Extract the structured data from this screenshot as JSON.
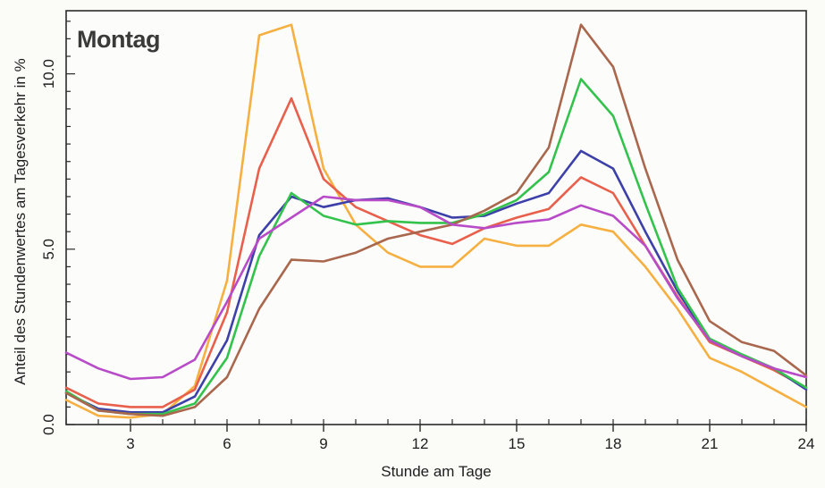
{
  "chart_data": {
    "type": "line",
    "title": "Montag",
    "xlabel": "Stunde am Tage",
    "ylabel": "Anteil des Stundenwertes am Tagesverkehr in %",
    "xlim": [
      1,
      24
    ],
    "ylim": [
      0,
      11.8
    ],
    "xticks": [
      3,
      6,
      9,
      12,
      15,
      18,
      21,
      24
    ],
    "xtick_labels": [
      "3",
      "6",
      "9",
      "12",
      "15",
      "18",
      "21",
      "24"
    ],
    "yticks": [
      0,
      5,
      10
    ],
    "ytick_labels": [
      "0.0",
      "5.0",
      "10.0"
    ],
    "grid": false,
    "legend": "none",
    "x": [
      1,
      2,
      3,
      4,
      5,
      6,
      7,
      8,
      9,
      10,
      11,
      12,
      13,
      14,
      15,
      16,
      17,
      18,
      19,
      20,
      21,
      22,
      23,
      24
    ],
    "series": [
      {
        "color": "#f5b041",
        "values": [
          0.7,
          0.25,
          0.2,
          0.3,
          1.1,
          4.1,
          11.1,
          11.4,
          7.3,
          5.7,
          4.9,
          4.5,
          4.5,
          5.3,
          5.1,
          5.1,
          5.7,
          5.5,
          4.5,
          3.3,
          1.9,
          1.5,
          1.0,
          0.5
        ]
      },
      {
        "color": "#e8604c",
        "values": [
          1.05,
          0.6,
          0.5,
          0.5,
          1.0,
          3.2,
          7.3,
          9.3,
          7.0,
          6.2,
          5.8,
          5.4,
          5.15,
          5.6,
          5.9,
          6.15,
          7.05,
          6.6,
          5.1,
          3.65,
          2.35,
          1.95,
          1.55,
          1.05
        ]
      },
      {
        "color": "#3c40a8",
        "values": [
          0.9,
          0.45,
          0.35,
          0.35,
          0.8,
          2.4,
          5.4,
          6.5,
          6.2,
          6.4,
          6.45,
          6.2,
          5.9,
          5.95,
          6.3,
          6.6,
          7.8,
          7.3,
          5.5,
          3.8,
          2.4,
          1.95,
          1.6,
          1.0
        ]
      },
      {
        "color": "#33c24c",
        "values": [
          0.95,
          0.4,
          0.3,
          0.3,
          0.6,
          1.9,
          4.8,
          6.6,
          5.95,
          5.7,
          5.8,
          5.75,
          5.75,
          6.0,
          6.4,
          7.2,
          9.85,
          8.8,
          6.3,
          3.9,
          2.45,
          2.0,
          1.6,
          1.05
        ]
      },
      {
        "color": "#a9674d",
        "values": [
          0.9,
          0.4,
          0.3,
          0.25,
          0.5,
          1.35,
          3.3,
          4.7,
          4.65,
          4.9,
          5.3,
          5.5,
          5.7,
          6.1,
          6.6,
          7.9,
          11.4,
          10.2,
          7.3,
          4.7,
          2.95,
          2.35,
          2.1,
          1.4
        ]
      },
      {
        "color": "#b84bc7",
        "values": [
          2.05,
          1.6,
          1.3,
          1.35,
          1.85,
          3.5,
          5.3,
          5.9,
          6.5,
          6.4,
          6.4,
          6.2,
          5.7,
          5.6,
          5.75,
          5.85,
          6.25,
          5.95,
          5.1,
          3.6,
          2.4,
          1.95,
          1.6,
          1.35
        ]
      }
    ]
  }
}
